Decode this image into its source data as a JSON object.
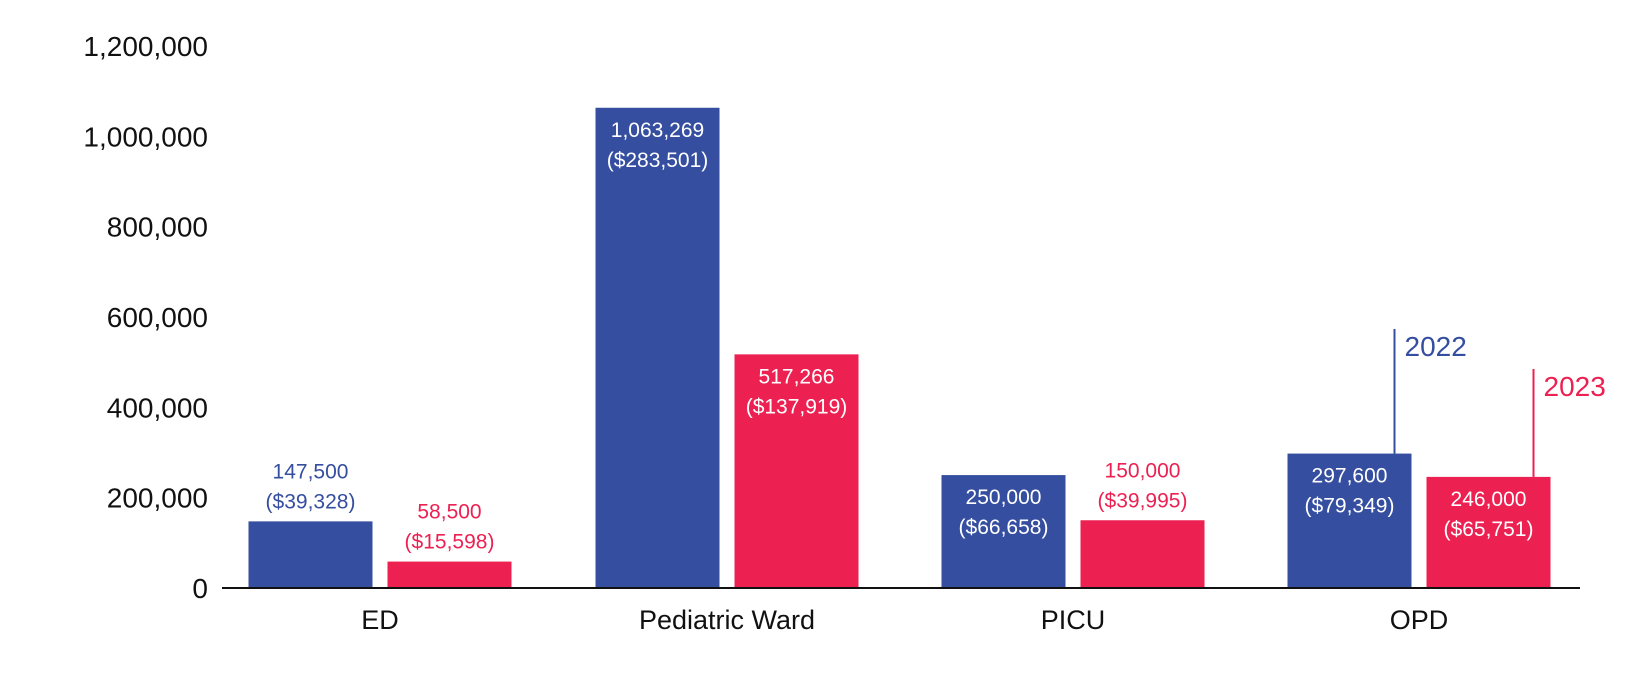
{
  "chart_data": {
    "type": "bar",
    "title": "",
    "xlabel": "",
    "ylabel": "",
    "ylim": [
      0,
      1200000
    ],
    "y_ticks": [
      0,
      200000,
      400000,
      600000,
      800000,
      1000000,
      1200000
    ],
    "y_tick_labels": [
      "0",
      "200,000",
      "400,000",
      "600,000",
      "800,000",
      "1,000,000",
      "1,200,000"
    ],
    "grid": false,
    "legend": "inline labels above OPD bars",
    "categories": [
      "ED",
      "Pediatric Ward",
      "PICU",
      "OPD"
    ],
    "series": [
      {
        "name": "2022",
        "color": "#354E9F",
        "values": [
          147500,
          1063269,
          250000,
          297600
        ],
        "labels": [
          "147,500",
          "1,063,269",
          "250,000",
          "297,600"
        ],
        "sublabels": [
          "($39,328)",
          "($283,501)",
          "($66,658)",
          "($79,349)"
        ]
      },
      {
        "name": "2023",
        "color": "#EC2152",
        "values": [
          58500,
          517266,
          150000,
          246000
        ],
        "labels": [
          "58,500",
          "517,266",
          "150,000",
          "246,000"
        ],
        "sublabels": [
          "($15,598)",
          "($137,919)",
          "($39,995)",
          "($65,751)"
        ]
      }
    ]
  }
}
